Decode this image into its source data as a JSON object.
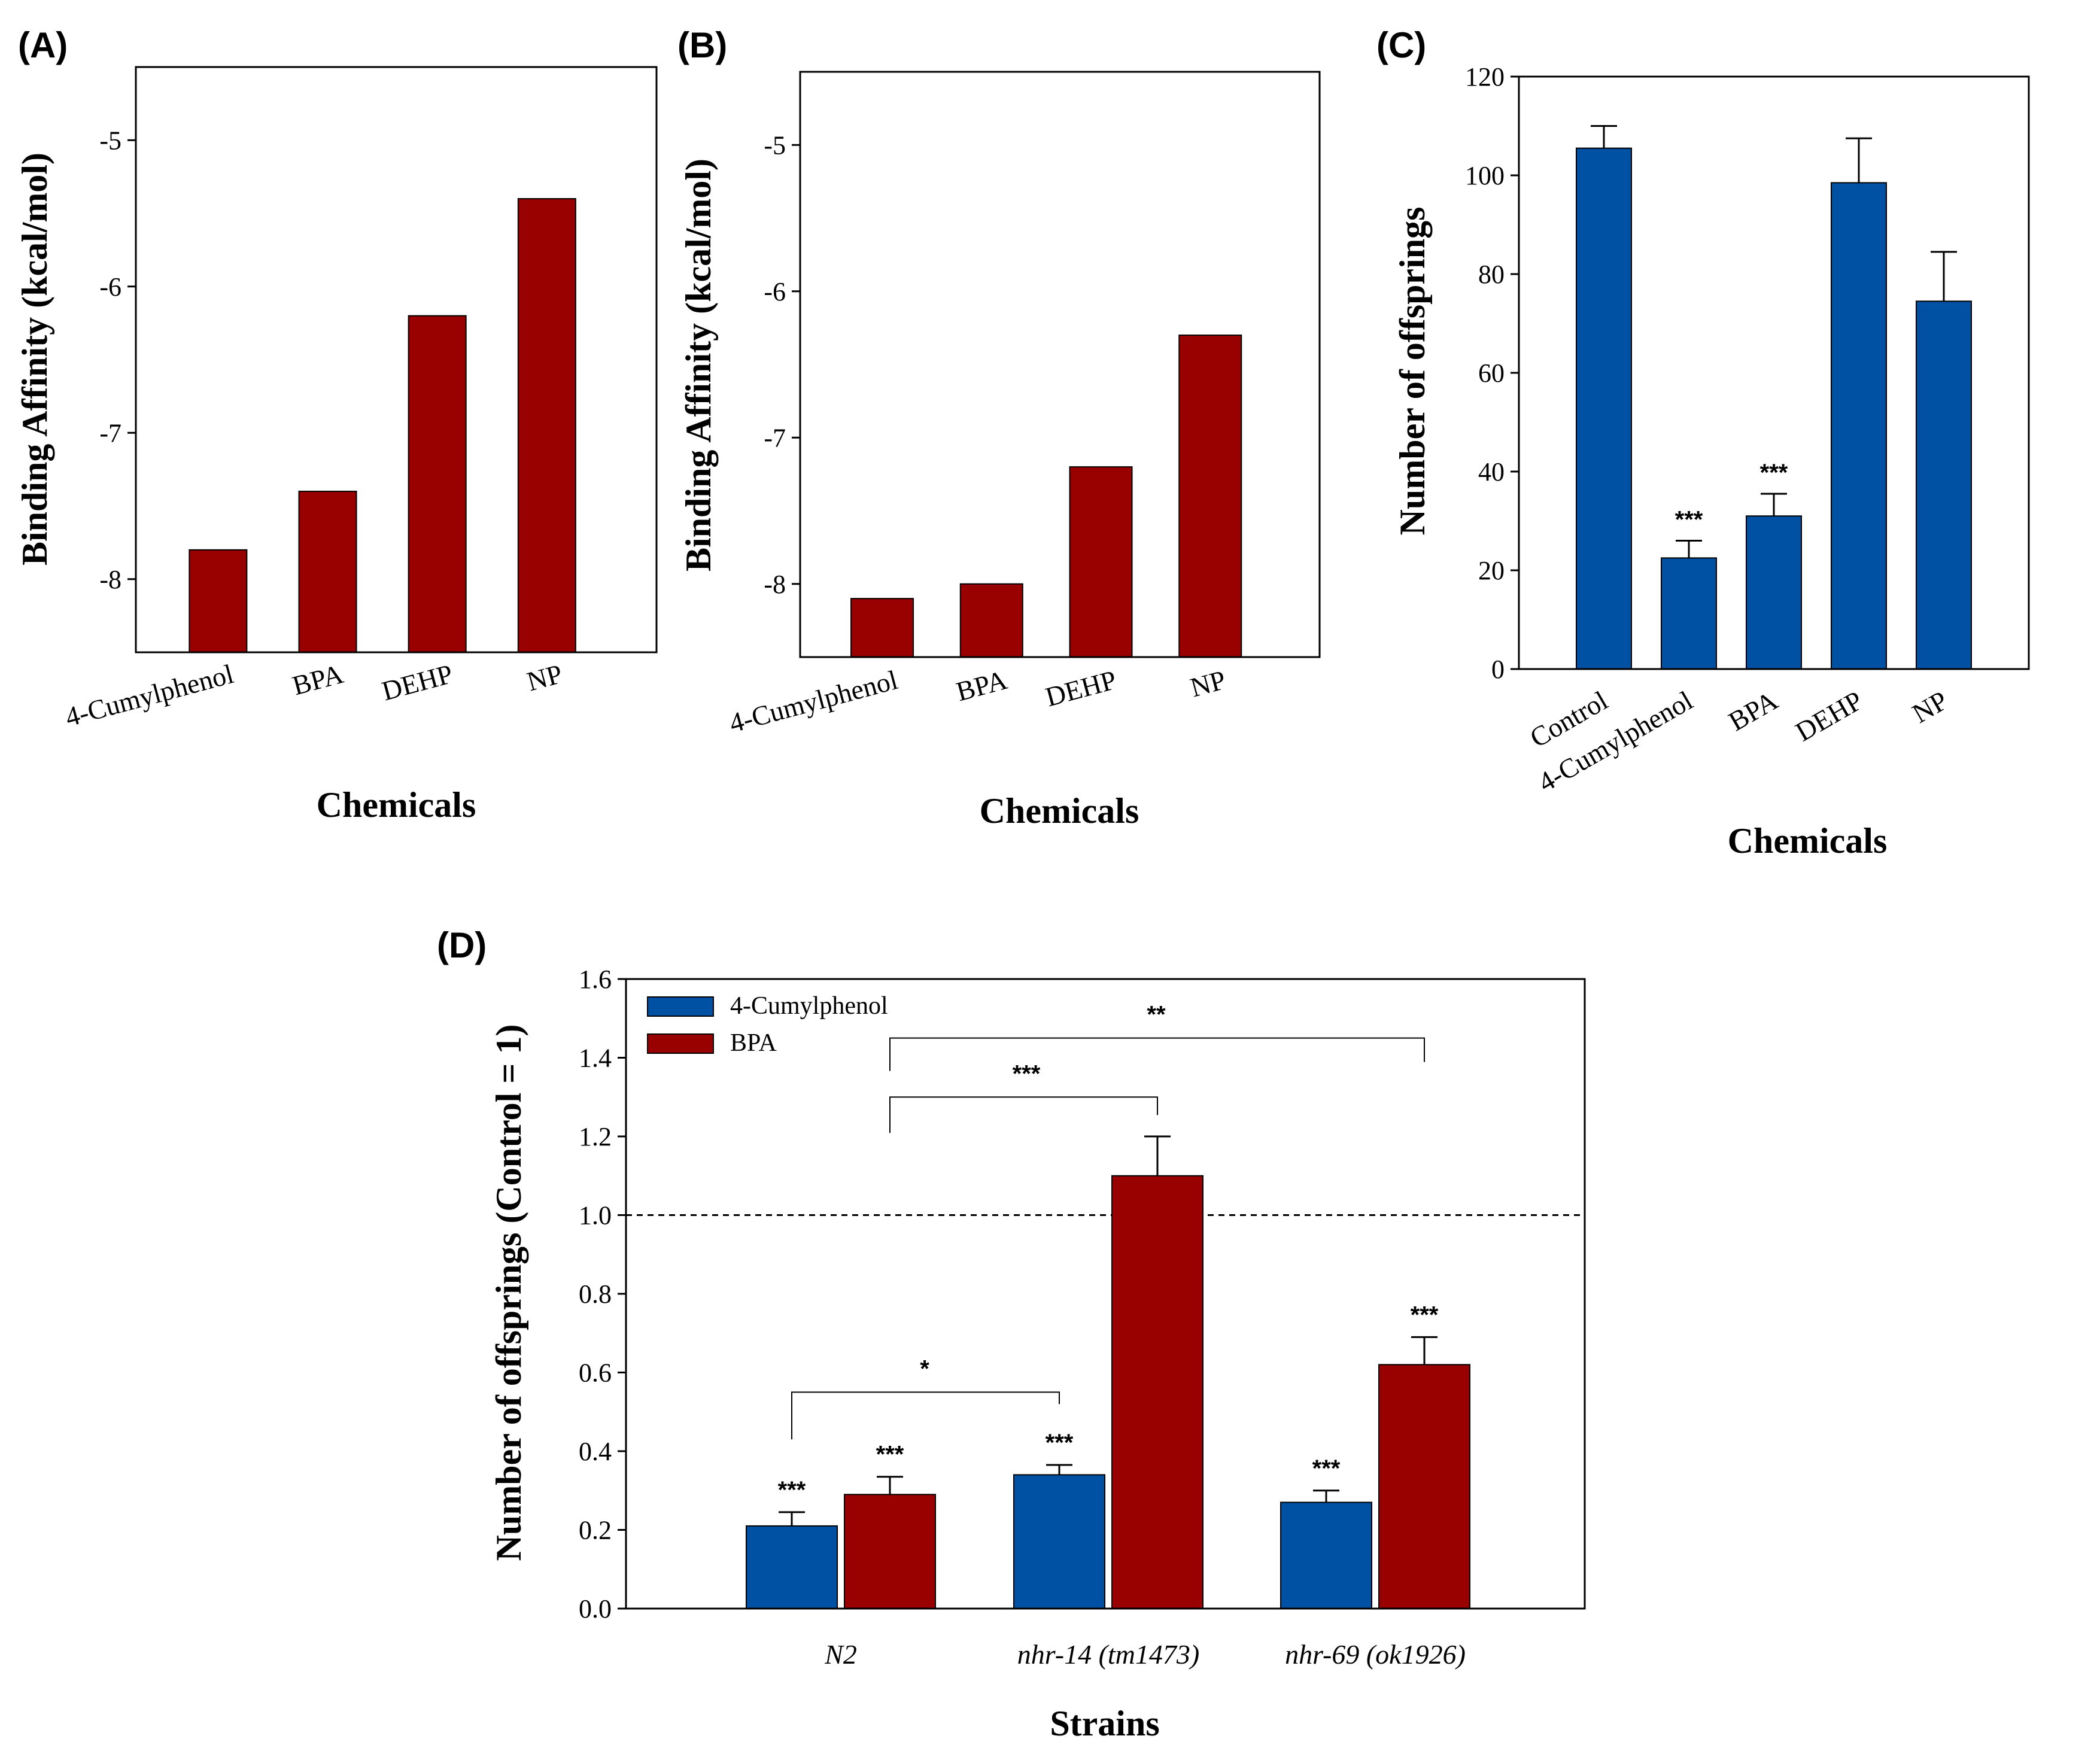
{
  "colors": {
    "red": "#990000",
    "blue": "#0050a4",
    "black": "#000000"
  },
  "chart_data": [
    {
      "panel": "(A)",
      "type": "bar",
      "title": "",
      "xlabel": "Chemicals",
      "ylabel": "Binding Affinity (kcal/mol)",
      "ylim": [
        -4.5,
        -8.5
      ],
      "yticks": [
        -8,
        -7,
        -6,
        -5
      ],
      "ytick_labels": [
        "-8",
        "-7",
        "-6",
        "-5"
      ],
      "categories": [
        "4-Cumylphenol",
        "BPA",
        "DEHP",
        "NP"
      ],
      "values": [
        -7.8,
        -7.4,
        -6.2,
        -5.4
      ],
      "color": "#990000"
    },
    {
      "panel": "(B)",
      "type": "bar",
      "title": "",
      "xlabel": "Chemicals",
      "ylabel": "Binding Affinity (kcal/mol)",
      "ylim": [
        -4.5,
        -8.5
      ],
      "yticks": [
        -8,
        -7,
        -6,
        -5
      ],
      "ytick_labels": [
        "-8",
        "-7",
        "-6",
        "-5"
      ],
      "categories": [
        "4-Cumylphenol",
        "BPA",
        "DEHP",
        "NP"
      ],
      "values": [
        -8.1,
        -8.0,
        -7.2,
        -6.3
      ],
      "color": "#990000"
    },
    {
      "panel": "(C)",
      "type": "bar",
      "title": "",
      "xlabel": "Chemicals",
      "ylabel": "Number of offsprings",
      "ylim": [
        0,
        120
      ],
      "yticks": [
        0,
        20,
        40,
        60,
        80,
        100,
        120
      ],
      "ytick_labels": [
        "0",
        "20",
        "40",
        "60",
        "80",
        "100",
        "120"
      ],
      "categories": [
        "Control",
        "4-Cumylphenol",
        "BPA",
        "DEHP",
        "NP"
      ],
      "values": [
        105.5,
        22.5,
        31,
        98.5,
        74.5
      ],
      "errors": [
        4.5,
        3.5,
        4.5,
        9,
        10
      ],
      "significance": [
        "",
        "***",
        "***",
        "",
        ""
      ],
      "color": "#0050a4"
    },
    {
      "panel": "(D)",
      "type": "bar",
      "title": "",
      "xlabel": "Strains",
      "ylabel": "Number of offsprings (Control = 1)",
      "ylim": [
        0,
        1.6
      ],
      "yticks": [
        0,
        0.2,
        0.4,
        0.6,
        0.8,
        1.0,
        1.2,
        1.4,
        1.6
      ],
      "ytick_labels": [
        "0.0",
        "0.2",
        "0.4",
        "0.6",
        "0.8",
        "1.0",
        "1.2",
        "1.4",
        "1.6"
      ],
      "categories": [
        "N2",
        "nhr-14 (tm1473)",
        "nhr-69 (ok1926)"
      ],
      "reference_line": 1.0,
      "legend": "top-left",
      "series": [
        {
          "name": "4-Cumylphenol",
          "color": "#0050a4",
          "values": [
            0.21,
            0.34,
            0.27
          ],
          "errors": [
            0.035,
            0.025,
            0.03
          ],
          "significance": [
            "***",
            "***",
            "***"
          ]
        },
        {
          "name": "BPA",
          "color": "#990000",
          "values": [
            0.29,
            1.1,
            0.62
          ],
          "errors": [
            0.045,
            0.1,
            0.07
          ],
          "significance": [
            "***",
            "",
            "***"
          ]
        }
      ],
      "comparisons": [
        {
          "from": "N2 / 4-Cumylphenol",
          "to": "nhr-14 (tm1473) / 4-Cumylphenol",
          "label": "*"
        },
        {
          "from": "N2 / BPA",
          "to": "nhr-14 (tm1473) / BPA",
          "label": "***"
        },
        {
          "from": "N2 / BPA",
          "to": "nhr-69 (ok1926) / BPA",
          "label": "**"
        }
      ]
    }
  ]
}
